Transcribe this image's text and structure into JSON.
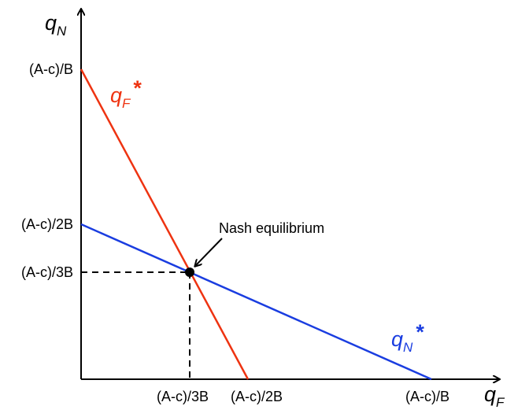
{
  "axes": {
    "y_label": {
      "symbol": "q",
      "subscript": "N"
    },
    "x_label": {
      "symbol": "q",
      "subscript": "F"
    }
  },
  "y_ticks": [
    "(A-c)/B",
    "(A-c)/2B",
    "(A-c)/3B"
  ],
  "x_ticks": [
    "(A-c)/3B",
    "(A-c)/2B",
    "(A-c)/B"
  ],
  "curves": [
    {
      "symbol": "q",
      "subscript": "F",
      "mark": "*"
    },
    {
      "symbol": "q",
      "subscript": "N",
      "mark": "*"
    }
  ],
  "annotation": "Nash equilibrium"
}
